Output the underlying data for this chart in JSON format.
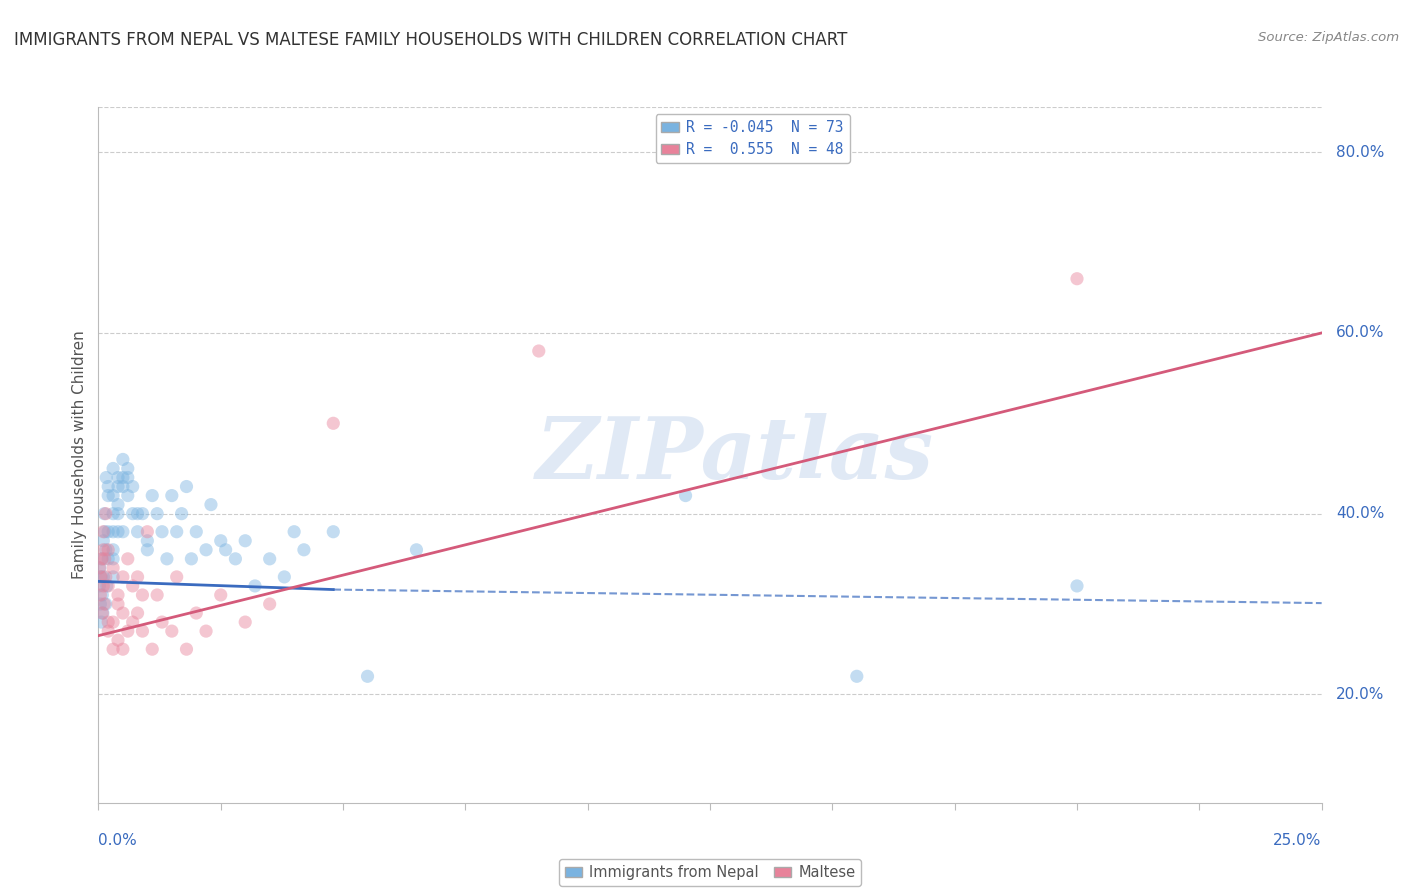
{
  "title": "IMMIGRANTS FROM NEPAL VS MALTESE FAMILY HOUSEHOLDS WITH CHILDREN CORRELATION CHART",
  "source": "Source: ZipAtlas.com",
  "ylabel": "Family Households with Children",
  "ytick_labels": [
    "20.0%",
    "40.0%",
    "60.0%",
    "80.0%"
  ],
  "ytick_values": [
    0.2,
    0.4,
    0.6,
    0.8
  ],
  "xrange": [
    0.0,
    0.25
  ],
  "yrange": [
    0.08,
    0.85
  ],
  "blue_scatter": [
    [
      0.0002,
      0.32
    ],
    [
      0.0003,
      0.34
    ],
    [
      0.0004,
      0.3
    ],
    [
      0.0005,
      0.33
    ],
    [
      0.0006,
      0.28
    ],
    [
      0.0007,
      0.35
    ],
    [
      0.0008,
      0.31
    ],
    [
      0.0009,
      0.29
    ],
    [
      0.001,
      0.33
    ],
    [
      0.001,
      0.37
    ],
    [
      0.0012,
      0.4
    ],
    [
      0.0013,
      0.38
    ],
    [
      0.0015,
      0.36
    ],
    [
      0.0015,
      0.3
    ],
    [
      0.0016,
      0.44
    ],
    [
      0.0017,
      0.32
    ],
    [
      0.002,
      0.35
    ],
    [
      0.002,
      0.38
    ],
    [
      0.002,
      0.43
    ],
    [
      0.002,
      0.42
    ],
    [
      0.003,
      0.4
    ],
    [
      0.003,
      0.35
    ],
    [
      0.003,
      0.33
    ],
    [
      0.003,
      0.45
    ],
    [
      0.003,
      0.42
    ],
    [
      0.003,
      0.38
    ],
    [
      0.003,
      0.36
    ],
    [
      0.004,
      0.43
    ],
    [
      0.004,
      0.4
    ],
    [
      0.004,
      0.44
    ],
    [
      0.004,
      0.41
    ],
    [
      0.004,
      0.38
    ],
    [
      0.005,
      0.46
    ],
    [
      0.005,
      0.43
    ],
    [
      0.005,
      0.44
    ],
    [
      0.005,
      0.38
    ],
    [
      0.006,
      0.45
    ],
    [
      0.006,
      0.42
    ],
    [
      0.006,
      0.44
    ],
    [
      0.007,
      0.4
    ],
    [
      0.007,
      0.43
    ],
    [
      0.008,
      0.4
    ],
    [
      0.008,
      0.38
    ],
    [
      0.009,
      0.4
    ],
    [
      0.01,
      0.36
    ],
    [
      0.01,
      0.37
    ],
    [
      0.011,
      0.42
    ],
    [
      0.012,
      0.4
    ],
    [
      0.013,
      0.38
    ],
    [
      0.014,
      0.35
    ],
    [
      0.015,
      0.42
    ],
    [
      0.016,
      0.38
    ],
    [
      0.017,
      0.4
    ],
    [
      0.018,
      0.43
    ],
    [
      0.019,
      0.35
    ],
    [
      0.02,
      0.38
    ],
    [
      0.022,
      0.36
    ],
    [
      0.023,
      0.41
    ],
    [
      0.025,
      0.37
    ],
    [
      0.026,
      0.36
    ],
    [
      0.028,
      0.35
    ],
    [
      0.03,
      0.37
    ],
    [
      0.032,
      0.32
    ],
    [
      0.035,
      0.35
    ],
    [
      0.038,
      0.33
    ],
    [
      0.04,
      0.38
    ],
    [
      0.042,
      0.36
    ],
    [
      0.048,
      0.38
    ],
    [
      0.055,
      0.22
    ],
    [
      0.065,
      0.36
    ],
    [
      0.12,
      0.42
    ],
    [
      0.155,
      0.22
    ],
    [
      0.2,
      0.32
    ]
  ],
  "pink_scatter": [
    [
      0.0002,
      0.34
    ],
    [
      0.0004,
      0.31
    ],
    [
      0.0005,
      0.33
    ],
    [
      0.0007,
      0.35
    ],
    [
      0.0008,
      0.29
    ],
    [
      0.001,
      0.36
    ],
    [
      0.001,
      0.32
    ],
    [
      0.001,
      0.38
    ],
    [
      0.0012,
      0.3
    ],
    [
      0.0013,
      0.35
    ],
    [
      0.0015,
      0.33
    ],
    [
      0.0015,
      0.4
    ],
    [
      0.002,
      0.28
    ],
    [
      0.002,
      0.36
    ],
    [
      0.002,
      0.27
    ],
    [
      0.002,
      0.32
    ],
    [
      0.003,
      0.34
    ],
    [
      0.003,
      0.25
    ],
    [
      0.003,
      0.28
    ],
    [
      0.004,
      0.31
    ],
    [
      0.004,
      0.26
    ],
    [
      0.004,
      0.3
    ],
    [
      0.005,
      0.33
    ],
    [
      0.005,
      0.25
    ],
    [
      0.005,
      0.29
    ],
    [
      0.006,
      0.27
    ],
    [
      0.006,
      0.35
    ],
    [
      0.007,
      0.32
    ],
    [
      0.007,
      0.28
    ],
    [
      0.008,
      0.33
    ],
    [
      0.008,
      0.29
    ],
    [
      0.009,
      0.27
    ],
    [
      0.009,
      0.31
    ],
    [
      0.01,
      0.38
    ],
    [
      0.011,
      0.25
    ],
    [
      0.012,
      0.31
    ],
    [
      0.013,
      0.28
    ],
    [
      0.015,
      0.27
    ],
    [
      0.016,
      0.33
    ],
    [
      0.018,
      0.25
    ],
    [
      0.02,
      0.29
    ],
    [
      0.022,
      0.27
    ],
    [
      0.025,
      0.31
    ],
    [
      0.03,
      0.28
    ],
    [
      0.035,
      0.3
    ],
    [
      0.048,
      0.5
    ],
    [
      0.09,
      0.58
    ],
    [
      0.2,
      0.66
    ]
  ],
  "blue_line_solid": {
    "x0": 0.0,
    "x1": 0.048,
    "y0": 0.325,
    "y1": 0.316
  },
  "blue_line_dashed": {
    "x0": 0.048,
    "x1": 0.25,
    "y0": 0.316,
    "y1": 0.301
  },
  "pink_line": {
    "x0": 0.0,
    "x1": 0.25,
    "y0": 0.265,
    "y1": 0.6
  },
  "watermark_text": "ZIPatlas",
  "scatter_size": 90,
  "scatter_alpha": 0.45,
  "blue_color": "#7ab3e0",
  "pink_color": "#e8829a",
  "blue_line_color": "#3a6bbf",
  "pink_line_color": "#d45a7a",
  "grid_color": "#cccccc",
  "grid_style": "--",
  "background_color": "#ffffff",
  "fig_width": 14.06,
  "fig_height": 8.92,
  "title_fontsize": 12,
  "axis_label_fontsize": 11,
  "tick_fontsize": 11
}
